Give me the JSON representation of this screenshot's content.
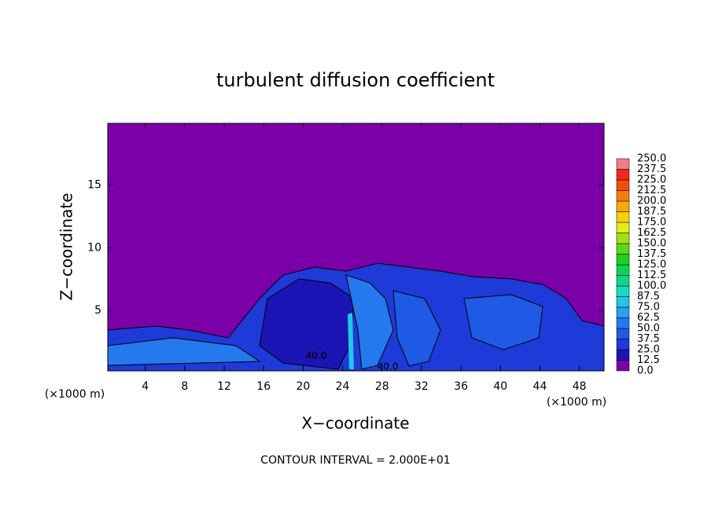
{
  "chart_data": {
    "type": "contour",
    "title": "turbulent diffusion coefficient",
    "x_label": "X−coordinate",
    "y_label": "Z−coordinate",
    "x_unit": "(×1000 m)",
    "annotation": "CONTOUR INTERVAL = 2.000E+01",
    "contour_labels": [
      "40.0",
      "40.0"
    ],
    "xlim": [
      0.2,
      50.5
    ],
    "ylim": [
      0.2,
      19.9
    ],
    "xticks": [
      4,
      8,
      12,
      16,
      20,
      24,
      28,
      32,
      36,
      40,
      44,
      48
    ],
    "yticks": [
      5,
      10,
      15
    ],
    "colorbar": {
      "ticks": [
        {
          "value": 0,
          "label": "0.0"
        },
        {
          "value": 12.5,
          "label": "12.5"
        },
        {
          "value": 25,
          "label": "25.0"
        },
        {
          "value": 37.5,
          "label": "37.5"
        },
        {
          "value": 50,
          "label": "50.0"
        },
        {
          "value": 62.5,
          "label": "62.5"
        },
        {
          "value": 75,
          "label": "75.0"
        },
        {
          "value": 87.5,
          "label": "87.5"
        },
        {
          "value": 100,
          "label": "100.0"
        },
        {
          "value": 112.5,
          "label": "112.5"
        },
        {
          "value": 125,
          "label": "125.0"
        },
        {
          "value": 137.5,
          "label": "137.5"
        },
        {
          "value": 150,
          "label": "150.0"
        },
        {
          "value": 162.5,
          "label": "162.5"
        },
        {
          "value": 175,
          "label": "175.0"
        },
        {
          "value": 187.5,
          "label": "187.5"
        },
        {
          "value": 200,
          "label": "200.0"
        },
        {
          "value": 212.5,
          "label": "212.5"
        },
        {
          "value": 225,
          "label": "225.0"
        },
        {
          "value": 237.5,
          "label": "237.5"
        },
        {
          "value": 250,
          "label": "250.0"
        }
      ],
      "colors": [
        "#7b00a8",
        "#1c14b4",
        "#1e3ad8",
        "#1f5ae6",
        "#2479ee",
        "#2aa0f2",
        "#1ec8e6",
        "#17ddc0",
        "#12d68a",
        "#10d250",
        "#20d020",
        "#5cd81a",
        "#a0e014",
        "#e8ec10",
        "#f5d00c",
        "#f7a80a",
        "#f57e0a",
        "#f24e0c",
        "#ee2a1a",
        "#f07a86"
      ]
    }
  }
}
